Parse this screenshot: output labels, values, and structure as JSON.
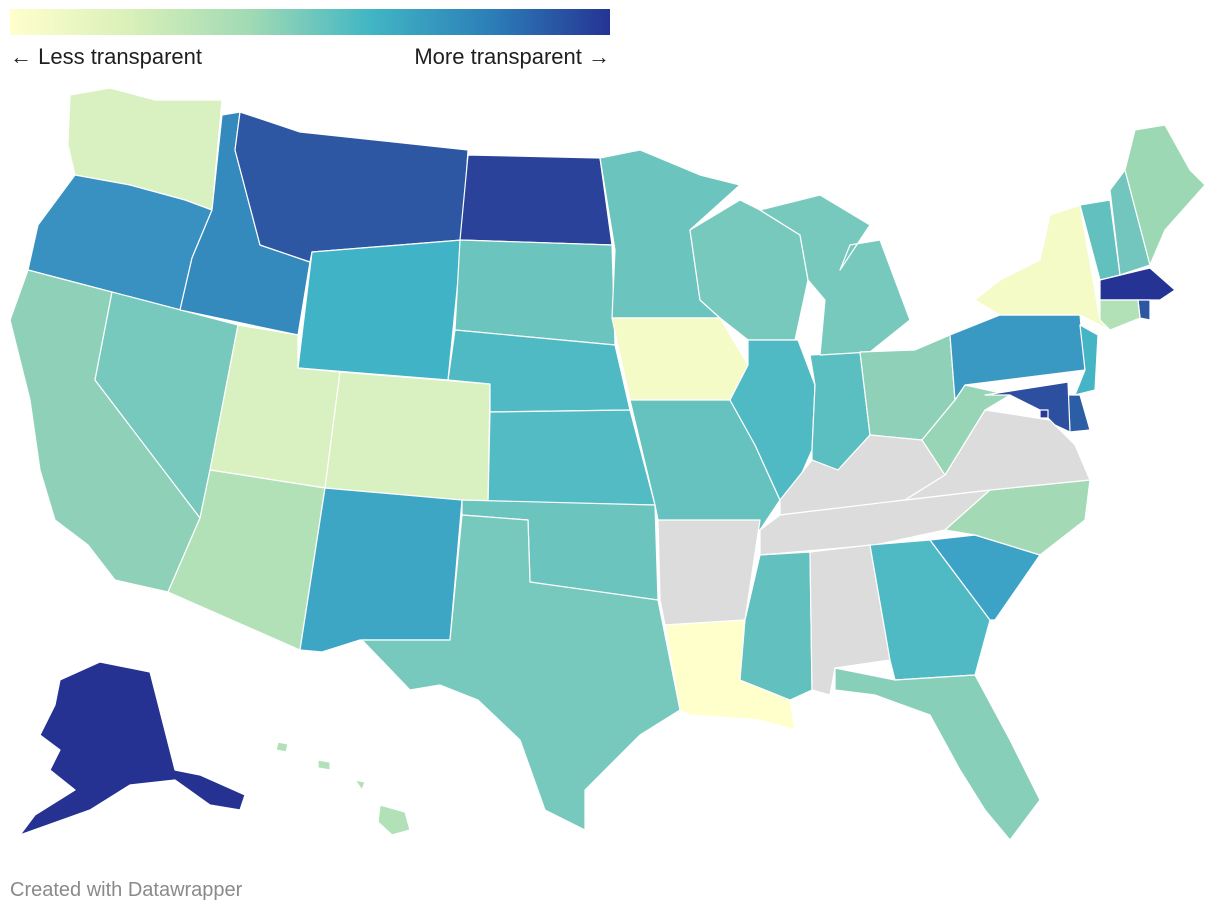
{
  "legend": {
    "left_label": "← Less transparent",
    "right_label": "More transparent →",
    "gradient": [
      "#ffffcc",
      "#d9f0b9",
      "#a1dab4",
      "#41b6c4",
      "#2c7fb8",
      "#253494"
    ]
  },
  "credit": "Created with Datawrapper",
  "no_data_color": "#dcdcdc",
  "states": {
    "WA": {
      "value": 0.15,
      "color": "#d9f0c0"
    },
    "OR": {
      "value": 0.78,
      "color": "#3891c1"
    },
    "CA": {
      "value": 0.45,
      "color": "#8fd1b8"
    },
    "ID": {
      "value": 0.8,
      "color": "#3489bd"
    },
    "NV": {
      "value": 0.52,
      "color": "#77c9bd"
    },
    "UT": {
      "value": 0.15,
      "color": "#d9f0c0"
    },
    "AZ": {
      "value": 0.3,
      "color": "#b2e1b8"
    },
    "MT": {
      "value": 0.9,
      "color": "#2d57a3"
    },
    "WY": {
      "value": 0.66,
      "color": "#41b3c6"
    },
    "CO": {
      "value": 0.15,
      "color": "#d9f0c0"
    },
    "NM": {
      "value": 0.72,
      "color": "#3ea6c5"
    },
    "ND": {
      "value": 0.95,
      "color": "#2a429a"
    },
    "SD": {
      "value": 0.55,
      "color": "#6cc4be"
    },
    "NE": {
      "value": 0.63,
      "color": "#4fbac4"
    },
    "KS": {
      "value": 0.62,
      "color": "#53bbc3"
    },
    "OK": {
      "value": 0.55,
      "color": "#6cc4be"
    },
    "TX": {
      "value": 0.52,
      "color": "#78c9bd"
    },
    "MN": {
      "value": 0.55,
      "color": "#6cc4be"
    },
    "IA": {
      "value": 0.05,
      "color": "#f4fbc7"
    },
    "MO": {
      "value": 0.57,
      "color": "#66c2bf"
    },
    "AR": {
      "value": null,
      "color": "#dcdcdc"
    },
    "LA": {
      "value": 0.0,
      "color": "#ffffcc"
    },
    "WI": {
      "value": 0.52,
      "color": "#78c9bd"
    },
    "IL": {
      "value": 0.63,
      "color": "#4fbac4"
    },
    "MS": {
      "value": 0.58,
      "color": "#62c0bf"
    },
    "AL": {
      "value": null,
      "color": "#dcdcdc"
    },
    "TN": {
      "value": null,
      "color": "#dcdcdc"
    },
    "KY": {
      "value": null,
      "color": "#dcdcdc"
    },
    "IN": {
      "value": 0.6,
      "color": "#5bbec1"
    },
    "MI": {
      "value": 0.52,
      "color": "#78c9bd"
    },
    "OH": {
      "value": 0.45,
      "color": "#8fd1b8"
    },
    "WV": {
      "value": 0.42,
      "color": "#98d5b6"
    },
    "VA": {
      "value": null,
      "color": "#dcdcdc"
    },
    "NC": {
      "value": 0.38,
      "color": "#a3dab5"
    },
    "SC": {
      "value": 0.72,
      "color": "#3ca3c6"
    },
    "GA": {
      "value": 0.63,
      "color": "#4fbac4"
    },
    "FL": {
      "value": 0.47,
      "color": "#88cfb9"
    },
    "PA": {
      "value": 0.74,
      "color": "#3a99c3"
    },
    "NY": {
      "value": 0.05,
      "color": "#f4fbc7"
    },
    "NJ": {
      "value": 0.65,
      "color": "#45b5c5"
    },
    "MD": {
      "value": 0.92,
      "color": "#2c4f9f"
    },
    "DE": {
      "value": 0.88,
      "color": "#2c5ea6"
    },
    "DC": {
      "value": 0.96,
      "color": "#283a97"
    },
    "VT": {
      "value": 0.58,
      "color": "#62c0bf"
    },
    "NH": {
      "value": 0.53,
      "color": "#73c6be"
    },
    "ME": {
      "value": 0.4,
      "color": "#9dd8b5"
    },
    "MA": {
      "value": 0.98,
      "color": "#253494"
    },
    "CT": {
      "value": 0.3,
      "color": "#b2e1b8"
    },
    "RI": {
      "value": 0.9,
      "color": "#2d57a3"
    },
    "AK": {
      "value": 1.0,
      "color": "#253291"
    },
    "HI": {
      "value": 0.3,
      "color": "#b2e1b8"
    }
  }
}
